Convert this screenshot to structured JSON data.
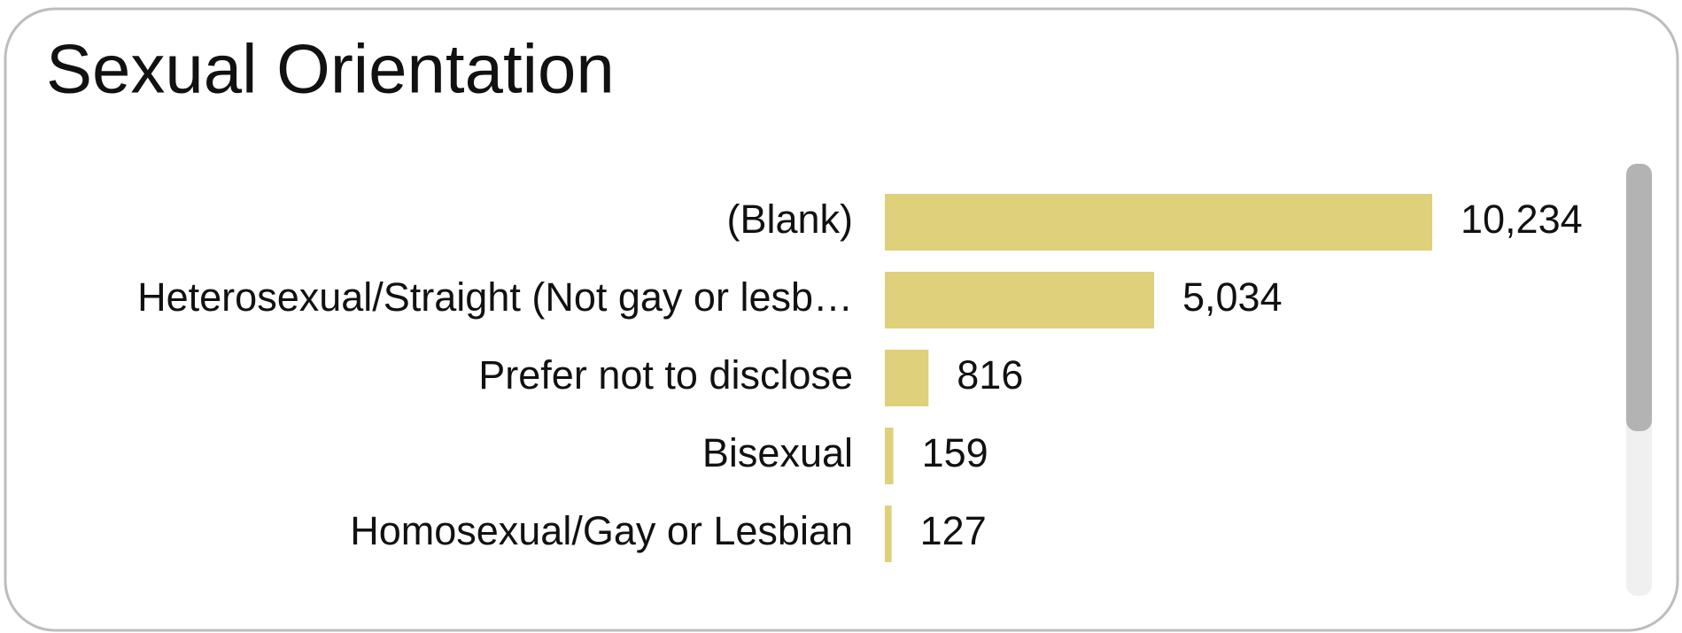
{
  "chart_data": {
    "type": "hbar",
    "title": "Sexual Orientation",
    "categories": [
      "(Blank)",
      "Heterosexual/Straight (Not gay or lesb…",
      "Prefer not to disclose",
      "Bisexual",
      "Homosexual/Gay or Lesbian"
    ],
    "values": [
      10234,
      5034,
      816,
      159,
      127
    ],
    "value_labels": [
      "10,234",
      "5,034",
      "816",
      "159",
      "127"
    ],
    "color": "#dfd07c"
  }
}
